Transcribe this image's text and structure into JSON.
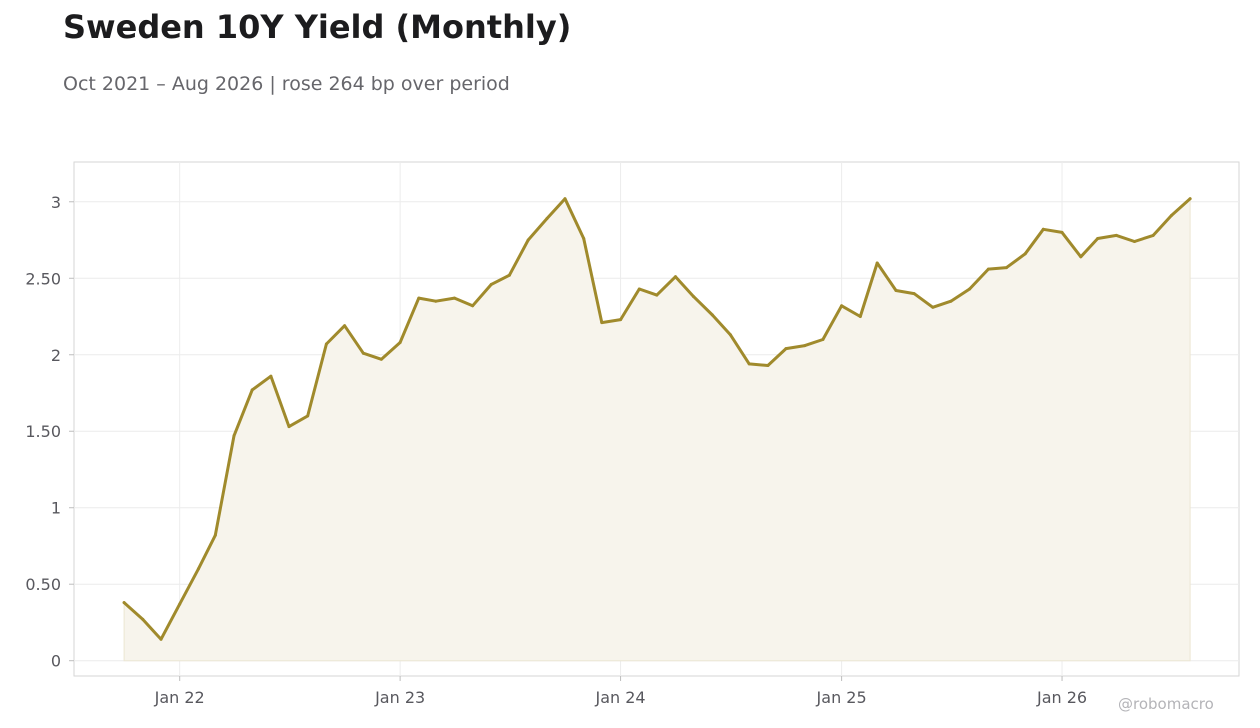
{
  "title": "Sweden 10Y Yield (Monthly)",
  "subtitle": "Oct 2021 – Aug 2026 | rose 264 bp over period",
  "watermark": "@robomacro",
  "colors": {
    "line": "#a08a2c",
    "fill": "#f7f4ec",
    "grid": "#ececec",
    "axis": "#d6d6d6"
  },
  "chart_data": {
    "type": "area",
    "title": "Sweden 10Y Yield (Monthly)",
    "subtitle": "Oct 2021 – Aug 2026 | rose 264 bp over period",
    "xlabel": "",
    "ylabel": "",
    "grid": true,
    "legend": "none",
    "ylim": [
      -0.1,
      3.26
    ],
    "xlim": [
      "2021-07-10",
      "2026-10-21"
    ],
    "y_ticks": [
      0,
      0.5,
      1,
      1.5,
      2,
      2.5,
      3
    ],
    "y_tick_labels": [
      "0",
      "0.50",
      "1",
      "1.50",
      "2",
      "2.50",
      "3"
    ],
    "x_ticks": [
      "2022-01-01",
      "2023-01-01",
      "2024-01-01",
      "2025-01-01",
      "2026-01-01"
    ],
    "x_tick_labels": [
      "Jan 22",
      "Jan 23",
      "Jan 24",
      "Jan 25",
      "Jan 26"
    ],
    "series": [
      {
        "x": [
          "2021-10",
          "2021-11",
          "2021-12",
          "2022-01",
          "2022-02",
          "2022-03",
          "2022-04",
          "2022-05",
          "2022-06",
          "2022-07",
          "2022-08",
          "2022-09",
          "2022-10",
          "2022-11",
          "2022-12",
          "2023-01",
          "2023-02",
          "2023-03",
          "2023-04",
          "2023-05",
          "2023-06",
          "2023-07",
          "2023-08",
          "2023-09",
          "2023-10",
          "2023-11",
          "2023-12",
          "2024-01",
          "2024-02",
          "2024-03",
          "2024-04",
          "2024-05",
          "2024-06",
          "2024-07",
          "2024-08",
          "2024-09",
          "2024-10",
          "2024-11",
          "2024-12",
          "2025-01",
          "2025-02",
          "2025-03",
          "2025-04",
          "2025-05",
          "2025-06",
          "2025-07",
          "2025-08",
          "2025-09",
          "2025-10",
          "2025-11",
          "2025-12",
          "2026-01",
          "2026-02",
          "2026-03",
          "2026-04",
          "2026-05",
          "2026-06",
          "2026-07",
          "2026-08"
        ],
        "values": [
          0.38,
          0.27,
          0.14,
          0.37,
          0.6,
          0.82,
          1.47,
          1.77,
          1.86,
          1.53,
          1.6,
          2.07,
          2.19,
          2.01,
          1.97,
          2.08,
          2.37,
          2.35,
          2.37,
          2.32,
          2.46,
          2.52,
          2.75,
          2.89,
          3.02,
          2.76,
          2.21,
          2.23,
          2.43,
          2.39,
          2.51,
          2.38,
          2.26,
          2.13,
          1.94,
          1.93,
          2.04,
          2.06,
          2.1,
          2.32,
          2.25,
          2.6,
          2.42,
          2.4,
          2.31,
          2.35,
          2.43,
          2.56,
          2.57,
          2.66,
          2.82,
          2.8,
          2.64,
          2.76,
          2.78,
          2.74,
          2.78,
          2.91,
          3.02
        ]
      }
    ]
  }
}
